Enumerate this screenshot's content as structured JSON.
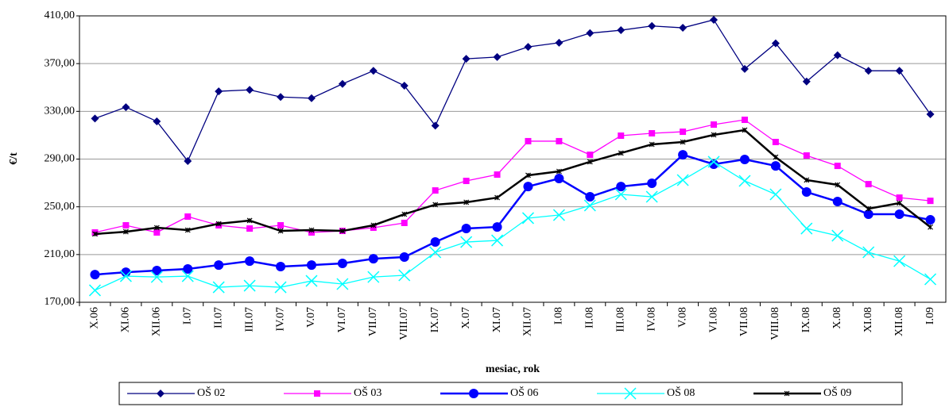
{
  "chart_data": {
    "type": "line",
    "y_label": "€/t",
    "x_label": "mesiac, rok",
    "categories": [
      "X.06",
      "XI.06",
      "XII.06",
      "I.07",
      "II.07",
      "III.07",
      "IV.07",
      "V.07",
      "VI.07",
      "VII.07",
      "VIII.07",
      "IX.07",
      "X.07",
      "XI.07",
      "XII.07",
      "I.08",
      "II.08",
      "III.08",
      "IV.08",
      "V.08",
      "VI.08",
      "VII.08",
      "VIII.08",
      "IX.08",
      "X.08",
      "XI.08",
      "XII.08",
      "I.09"
    ],
    "ylim": [
      170,
      410
    ],
    "yticks": [
      {
        "value": 170,
        "label": "170,00"
      },
      {
        "value": 210,
        "label": "210,00"
      },
      {
        "value": 250,
        "label": "250,00"
      },
      {
        "value": 290,
        "label": "290,00"
      },
      {
        "value": 330,
        "label": "330,00"
      },
      {
        "value": 370,
        "label": "370,00"
      },
      {
        "value": 410,
        "label": "410,00"
      }
    ],
    "grid": true,
    "legend": "bottom",
    "series": [
      {
        "name": "OŠ 02",
        "color": "#000080",
        "marker": "diamond",
        "values": [
          324,
          333.5,
          321.6,
          288.3,
          346.8,
          348,
          342,
          341,
          353,
          364,
          351.5,
          318,
          374,
          375.5,
          384,
          387.5,
          395.5,
          398,
          401.5,
          400,
          406.7,
          365.5,
          387,
          355,
          377,
          364,
          364,
          327.6
        ]
      },
      {
        "name": "OŠ 03",
        "color": "#ff00ff",
        "marker": "square",
        "values": [
          228.5,
          234.5,
          228.5,
          241.8,
          234.5,
          231.8,
          234.5,
          228.5,
          229.8,
          232.5,
          236.5,
          263.7,
          271.7,
          277,
          305,
          305,
          293.6,
          309.6,
          311.6,
          312.9,
          318.9,
          322.9,
          304.3,
          293,
          284.3,
          269,
          257.7,
          255
        ]
      },
      {
        "name": "OŠ 06",
        "color": "#0000ff",
        "marker": "circle",
        "values": [
          193.2,
          195.2,
          196.6,
          197.9,
          201.2,
          204.5,
          199.9,
          201.2,
          202.6,
          206.5,
          207.9,
          220.5,
          231.8,
          233.1,
          267,
          273.7,
          258.4,
          267,
          269.7,
          293.6,
          285.7,
          289.7,
          284.3,
          262.4,
          254.4,
          243.8,
          243.8,
          239.1
        ]
      },
      {
        "name": "OŠ 08",
        "color": "#00ffff",
        "marker": "x",
        "values": [
          180,
          191.9,
          191.2,
          191.9,
          182.6,
          183.9,
          182.6,
          187.9,
          185.3,
          191.2,
          192.6,
          211.9,
          220.5,
          221.8,
          240.5,
          243.1,
          251.1,
          260.4,
          258.4,
          272.4,
          287.7,
          271.7,
          260.4,
          231.8,
          225.8,
          211.9,
          204.5,
          189.3
        ]
      },
      {
        "name": "OŠ 09",
        "color": "#000000",
        "marker": "star",
        "values": [
          227.2,
          229.1,
          232.5,
          230.5,
          235.8,
          238.5,
          229.8,
          230.5,
          229.8,
          234.5,
          243.8,
          251.8,
          253.8,
          257.7,
          276.4,
          279.7,
          287.7,
          295,
          302.3,
          304.3,
          310.3,
          314.3,
          291.6,
          272.4,
          268.4,
          248.4,
          253.1,
          233
        ]
      }
    ]
  }
}
